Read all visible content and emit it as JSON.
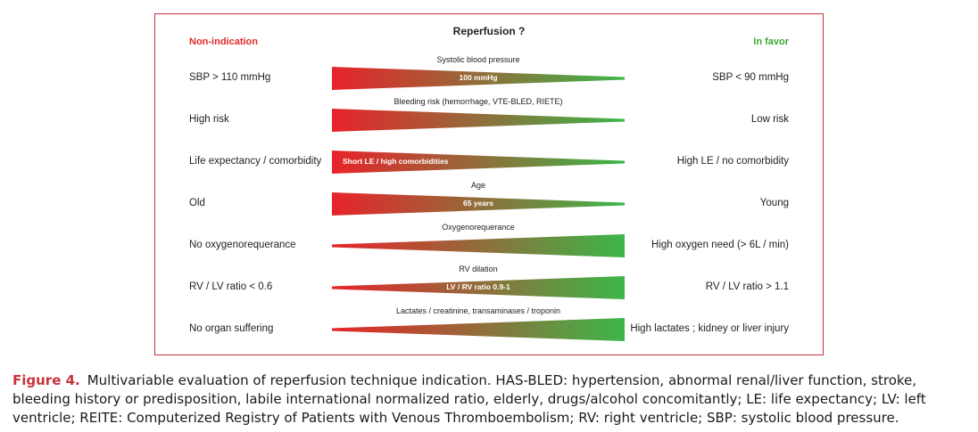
{
  "diagram": {
    "title": "Reperfusion ?",
    "left_header": "Non-indication",
    "right_header": "In favor",
    "colors": {
      "red": "#e8232a",
      "green": "#3cb64a",
      "border": "#c8323a"
    },
    "rows": [
      {
        "left": "SBP > 110 mmHg",
        "criterion": "Systolic blood pressure",
        "inside": "100 mmHg",
        "right": "SBP < 90 mmHg",
        "shape": "wide-left"
      },
      {
        "left": "High risk",
        "criterion": "Bleeding risk (hemorrhage, VTE-BLED, RIETE)",
        "inside": "",
        "right": "Low risk",
        "shape": "wide-left"
      },
      {
        "left": "Life expectancy / comorbidity",
        "criterion": "",
        "inside": "Short LE / high comorbidities",
        "right": "High LE / no comorbidity",
        "shape": "wide-left"
      },
      {
        "left": "Old",
        "criterion": "Age",
        "inside": "65 years",
        "right": "Young",
        "shape": "wide-left"
      },
      {
        "left": "No oxygenorequerance",
        "criterion": "Oxygenorequerance",
        "inside": "",
        "right": "High oxygen need (> 6L / min)",
        "shape": "wide-right"
      },
      {
        "left": "RV / LV ratio < 0.6",
        "criterion": "RV dilation",
        "inside": "LV / RV ratio 0.9-1",
        "right": "RV / LV ratio > 1.1",
        "shape": "wide-right"
      },
      {
        "left": "No organ suffering",
        "criterion": "Lactates / creatinine, transaminases / troponin",
        "inside": "",
        "right": "High lactates ; kidney or liver injury",
        "shape": "wide-right"
      }
    ]
  },
  "caption": {
    "label": "Figure 4.",
    "text": "Multivariable evaluation of reperfusion technique indication. HAS-BLED: hypertension, abnormal renal/liver function, stroke, bleeding history or predisposition, labile international normalized ratio, elderly, drugs/alcohol concomitantly; LE: life expectancy; LV: left ventricle; REITE: Computerized Registry of Patients with Venous Thromboembolism; RV: right ventricle; SBP: systolic blood pressure."
  }
}
